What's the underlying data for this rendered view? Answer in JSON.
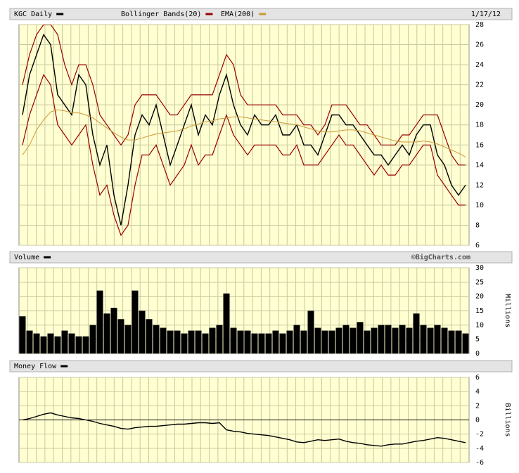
{
  "chart_data": [
    {
      "type": "line",
      "date": "1/17/12",
      "series": [
        {
          "name": "KGC Daily",
          "color": "#000000",
          "values": [
            19,
            23,
            25,
            27,
            26,
            21,
            20,
            19,
            23,
            22,
            17,
            14,
            16,
            11,
            8,
            12,
            17,
            19,
            18,
            20,
            17,
            14,
            16,
            18,
            20,
            17,
            19,
            18,
            21,
            23,
            20,
            18,
            17,
            19,
            18,
            18,
            19,
            17,
            17,
            18,
            16,
            16,
            15,
            17,
            19,
            19,
            18,
            18,
            17,
            16,
            15,
            15,
            14,
            15,
            16,
            15,
            17,
            18,
            18,
            15,
            14,
            12,
            11,
            12
          ]
        },
        {
          "name": "Bollinger Bands(20)",
          "color": "#990000",
          "upper": [
            22,
            25,
            27,
            28,
            28,
            27,
            24,
            22,
            24,
            24,
            22,
            19,
            18,
            17,
            16,
            17,
            20,
            21,
            21,
            21,
            20,
            19,
            19,
            20,
            21,
            21,
            21,
            21,
            23,
            25,
            24,
            21,
            20,
            20,
            20,
            20,
            20,
            19,
            19,
            19,
            18,
            18,
            17,
            18,
            20,
            20,
            20,
            19,
            18,
            18,
            17,
            16,
            16,
            16,
            17,
            17,
            18,
            19,
            19,
            19,
            17,
            15,
            14,
            14
          ],
          "lower": [
            16,
            19,
            21,
            23,
            22,
            18,
            17,
            16,
            17,
            18,
            14,
            11,
            12,
            9,
            7,
            8,
            12,
            15,
            15,
            16,
            14,
            12,
            13,
            14,
            16,
            14,
            15,
            15,
            17,
            19,
            17,
            16,
            15,
            16,
            16,
            16,
            16,
            15,
            15,
            16,
            14,
            14,
            14,
            15,
            16,
            17,
            16,
            16,
            15,
            14,
            13,
            14,
            13,
            13,
            14,
            14,
            15,
            16,
            16,
            13,
            12,
            11,
            10,
            10
          ]
        },
        {
          "name": "EMA(200)",
          "color": "#cc9933",
          "values": [
            15,
            16,
            17.5,
            18.5,
            19.3,
            19.5,
            19.4,
            19.2,
            19.2,
            19,
            18.7,
            18.2,
            17.7,
            17.2,
            16.8,
            16.5,
            16.5,
            16.7,
            16.9,
            17.1,
            17.2,
            17.3,
            17.4,
            17.6,
            17.9,
            18.1,
            18.3,
            18.4,
            18.6,
            18.7,
            18.8,
            18.8,
            18.7,
            18.6,
            18.5,
            18.4,
            18.3,
            18.2,
            18.1,
            18,
            17.8,
            17.6,
            17.4,
            17.3,
            17.3,
            17.4,
            17.5,
            17.5,
            17.4,
            17.2,
            17,
            16.8,
            16.6,
            16.4,
            16.3,
            16.3,
            16.3,
            16.4,
            16.3,
            16.1,
            15.8,
            15.5,
            15.2,
            14.8
          ]
        }
      ],
      "ylim": [
        6,
        28
      ],
      "yticks": [
        6,
        8,
        10,
        12,
        14,
        16,
        18,
        20,
        22,
        24,
        26,
        28
      ],
      "grid": true
    },
    {
      "type": "bar",
      "credit": "©BigCharts.com",
      "ylabel": "Millions",
      "series": [
        {
          "name": "Volume",
          "color": "#000000",
          "values": [
            13,
            8,
            7,
            6,
            7,
            6,
            8,
            7,
            6,
            6,
            10,
            22,
            14,
            16,
            12,
            10,
            22,
            15,
            12,
            10,
            9,
            8,
            8,
            7,
            8,
            8,
            7,
            9,
            10,
            21,
            9,
            8,
            8,
            7,
            7,
            7,
            8,
            7,
            8,
            10,
            8,
            15,
            9,
            8,
            8,
            9,
            10,
            9,
            11,
            8,
            9,
            10,
            10,
            9,
            10,
            9,
            14,
            10,
            9,
            10,
            9,
            8,
            8,
            7
          ]
        }
      ],
      "ylim": [
        0,
        30
      ],
      "yticks": [
        0,
        5,
        10,
        15,
        20,
        25,
        30
      ],
      "grid": true
    },
    {
      "type": "line",
      "ylabel": "Billions",
      "series": [
        {
          "name": "Money Flow",
          "color": "#000000",
          "values": [
            0,
            0.2,
            0.5,
            0.8,
            1,
            0.7,
            0.5,
            0.3,
            0.2,
            0,
            -0.2,
            -0.5,
            -0.7,
            -0.9,
            -1.2,
            -1.3,
            -1.1,
            -1,
            -0.9,
            -0.9,
            -0.8,
            -0.7,
            -0.6,
            -0.6,
            -0.5,
            -0.4,
            -0.4,
            -0.5,
            -0.4,
            -1.4,
            -1.6,
            -1.7,
            -1.9,
            -2,
            -2.1,
            -2.2,
            -2.4,
            -2.6,
            -2.8,
            -3.1,
            -3.2,
            -3.0,
            -2.8,
            -2.9,
            -2.8,
            -2.7,
            -3.0,
            -3.2,
            -3.3,
            -3.5,
            -3.6,
            -3.7,
            -3.5,
            -3.4,
            -3.4,
            -3.2,
            -3.0,
            -2.9,
            -2.7,
            -2.5,
            -2.6,
            -2.8,
            -3.0,
            -3.2
          ]
        }
      ],
      "ylim": [
        -6,
        6
      ],
      "yticks": [
        -6,
        -4,
        -2,
        0,
        2,
        4,
        6
      ],
      "grid": true
    }
  ]
}
